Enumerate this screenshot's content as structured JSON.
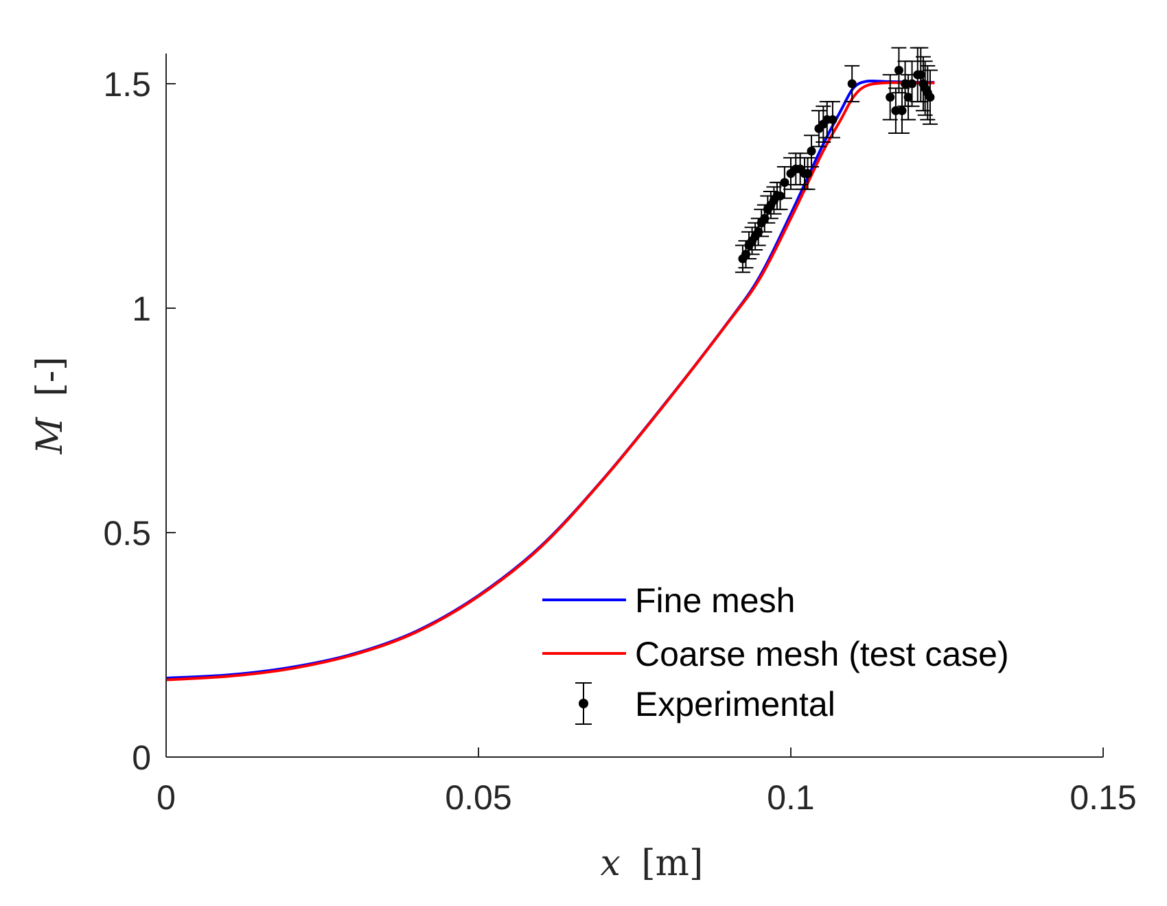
{
  "chart_data": {
    "type": "line",
    "title": "",
    "xlabel": {
      "symbol": "x",
      "unit": "[m]"
    },
    "ylabel": {
      "symbol": "M",
      "unit": "[-]"
    },
    "xlim": [
      0,
      0.15
    ],
    "ylim": [
      0,
      1.6
    ],
    "xticks": [
      0,
      0.05,
      0.1,
      0.15
    ],
    "xtick_labels": [
      "0",
      "0.05",
      "0.1",
      "0.15"
    ],
    "yticks": [
      0,
      0.5,
      1,
      1.5
    ],
    "ytick_labels": [
      "0",
      "0.5",
      "1",
      "1.5"
    ],
    "grid": false,
    "legend_position": "bottom-right",
    "series": [
      {
        "name": "Fine mesh",
        "color": "#0000ff",
        "style": "line",
        "x": [
          0,
          0.01,
          0.02,
          0.03,
          0.04,
          0.05,
          0.06,
          0.07,
          0.08,
          0.09,
          0.095,
          0.1,
          0.105,
          0.108,
          0.11,
          0.112,
          0.115,
          0.12,
          0.123
        ],
        "y": [
          0.176,
          0.183,
          0.2,
          0.23,
          0.28,
          0.36,
          0.47,
          0.62,
          0.79,
          0.97,
          1.07,
          1.21,
          1.36,
          1.44,
          1.49,
          1.505,
          1.505,
          1.503,
          1.503
        ]
      },
      {
        "name": "Coarse mesh (test case)",
        "color": "#ff0000",
        "style": "line",
        "x": [
          0,
          0.01,
          0.02,
          0.03,
          0.04,
          0.05,
          0.06,
          0.07,
          0.08,
          0.09,
          0.095,
          0.1,
          0.105,
          0.108,
          0.11,
          0.112,
          0.115,
          0.12,
          0.123
        ],
        "y": [
          0.172,
          0.18,
          0.197,
          0.228,
          0.278,
          0.358,
          0.468,
          0.619,
          0.789,
          0.969,
          1.065,
          1.2,
          1.345,
          1.42,
          1.47,
          1.495,
          1.502,
          1.502,
          1.502
        ]
      },
      {
        "name": "Experimental",
        "color": "#000000",
        "style": "errorbar",
        "x": [
          0.0923,
          0.0928,
          0.0933,
          0.0938,
          0.0943,
          0.0948,
          0.0953,
          0.0958,
          0.0963,
          0.0968,
          0.0973,
          0.0978,
          0.0983,
          0.099,
          0.1,
          0.1008,
          0.1015,
          0.1022,
          0.1027,
          0.1033,
          0.1045,
          0.1052,
          0.1058,
          0.1067,
          0.1098,
          0.1159,
          0.1168,
          0.1173,
          0.1178,
          0.1183,
          0.1188,
          0.1194,
          0.1203,
          0.1208,
          0.1212,
          0.1215,
          0.1219,
          0.1223
        ],
        "y": [
          1.11,
          1.12,
          1.14,
          1.15,
          1.16,
          1.17,
          1.19,
          1.2,
          1.22,
          1.23,
          1.24,
          1.25,
          1.25,
          1.28,
          1.3,
          1.31,
          1.31,
          1.3,
          1.3,
          1.35,
          1.4,
          1.41,
          1.42,
          1.42,
          1.5,
          1.47,
          1.44,
          1.53,
          1.44,
          1.5,
          1.47,
          1.5,
          1.52,
          1.52,
          1.5,
          1.49,
          1.48,
          1.47
        ],
        "err": [
          0.03,
          0.03,
          0.03,
          0.03,
          0.03,
          0.03,
          0.03,
          0.03,
          0.03,
          0.03,
          0.03,
          0.03,
          0.03,
          0.035,
          0.035,
          0.035,
          0.035,
          0.035,
          0.035,
          0.035,
          0.04,
          0.04,
          0.04,
          0.04,
          0.04,
          0.05,
          0.05,
          0.05,
          0.05,
          0.05,
          0.05,
          0.05,
          0.06,
          0.06,
          0.06,
          0.06,
          0.06,
          0.06
        ]
      }
    ]
  }
}
